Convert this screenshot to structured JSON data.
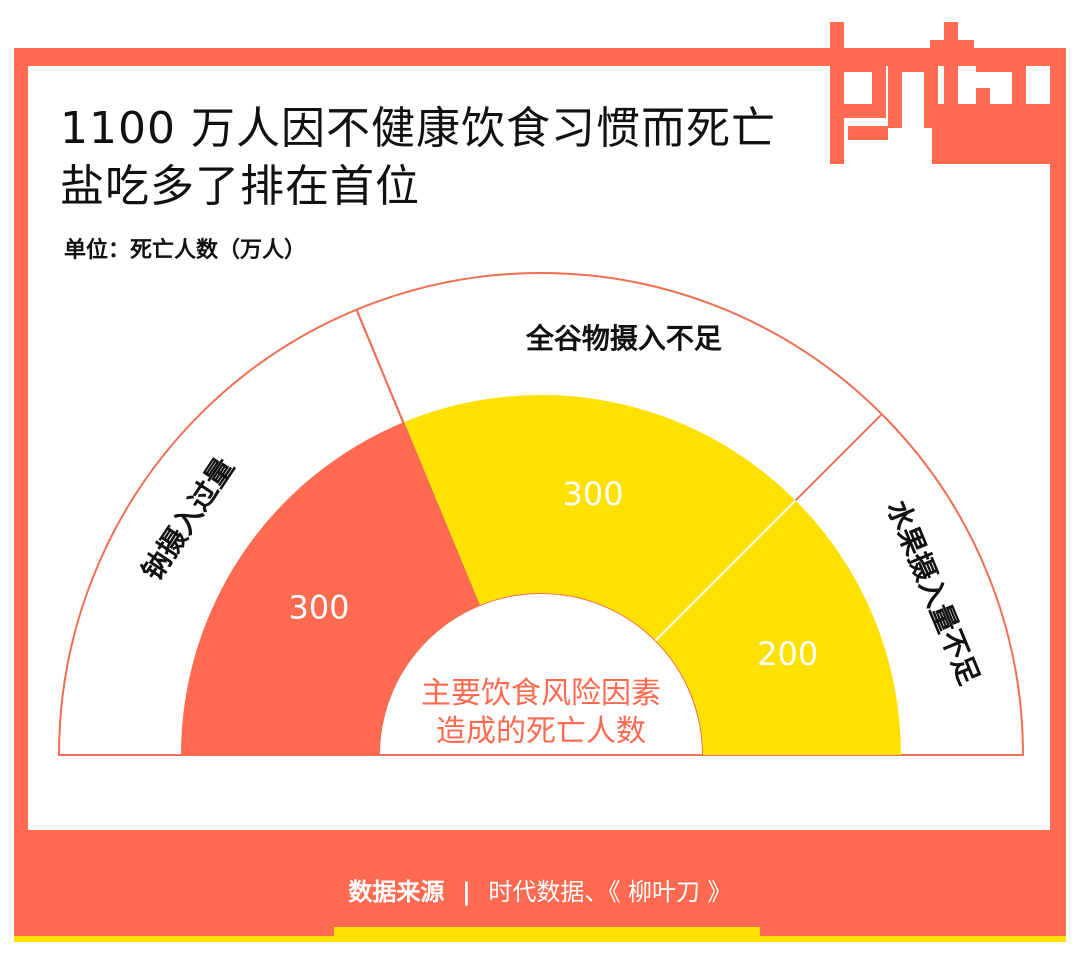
{
  "title_lines": [
    "1100 万人因不健康饮食习惯而死亡",
    "盐吃多了排在首位"
  ],
  "unit": "单位：死亡人数（万人）",
  "logo": {
    "wordmark": "data",
    "name": "时代数据"
  },
  "colors": {
    "accent": "#FF6A50",
    "yellow": "#FFE100",
    "line": "#F07055"
  },
  "chart_data": {
    "type": "pie",
    "variant": "semicircle-donut",
    "center_label": [
      "主要饮食风险因素",
      "造成的死亡人数"
    ],
    "categories": [
      "钠摄入过量",
      "全谷物摄入不足",
      "水果摄入量不足"
    ],
    "values": [
      300,
      300,
      200
    ],
    "value_labels": [
      "300",
      "300",
      "200"
    ],
    "segment_colors": [
      "#FF6A50",
      "#FFE100",
      "#FFE100"
    ]
  },
  "source": {
    "label": "数据来源",
    "separator": "|",
    "text": "时代数据、《 柳叶刀 》"
  }
}
